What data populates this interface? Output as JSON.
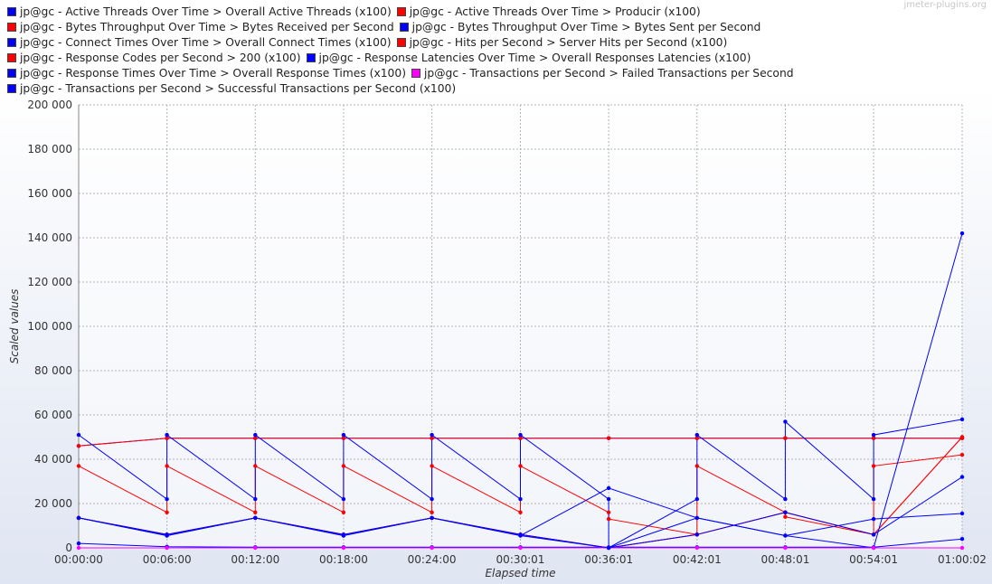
{
  "watermark": "jmeter-plugins.org",
  "chart_data": {
    "type": "line",
    "xlabel": "Elapsed time",
    "ylabel": "Scaled values",
    "ylim": [
      0,
      200000
    ],
    "yticks": [
      "0",
      "20 000",
      "40 000",
      "60 000",
      "80 000",
      "100 000",
      "120 000",
      "140 000",
      "160 000",
      "180 000",
      "200 000"
    ],
    "xlim_seconds": [
      0,
      3602
    ],
    "xticks": [
      "00:00:00",
      "00:06:00",
      "00:12:00",
      "00:18:00",
      "00:24:00",
      "00:30:01",
      "00:36:01",
      "00:42:01",
      "00:48:01",
      "00:54:01",
      "01:00:02"
    ],
    "grid": true,
    "legend_position": "top",
    "series": [
      {
        "name": "jp@gc - Active Threads Over Time > Overall Active Threads (x100)",
        "color": "#0000ff",
        "x": [
          "00:00:00",
          "00:06:00",
          "00:12:00",
          "00:18:00",
          "00:24:00",
          "00:30:01",
          "00:36:01",
          "00:42:01",
          "00:48:01",
          "00:54:01",
          "01:00:02"
        ],
        "y": [
          46000,
          49500,
          49500,
          49500,
          49500,
          49500,
          49500,
          49500,
          49500,
          49500,
          49500
        ]
      },
      {
        "name": "jp@gc - Active Threads Over Time > Producir (x100)",
        "color": "#ff0000",
        "x": [
          "00:00:00",
          "00:06:00",
          "00:12:00",
          "00:18:00",
          "00:24:00",
          "00:30:01",
          "00:36:01",
          "00:42:01",
          "00:48:01",
          "00:54:01",
          "01:00:02"
        ],
        "y": [
          46000,
          49500,
          49500,
          49500,
          49500,
          49500,
          49500,
          49500,
          49500,
          49500,
          49500
        ]
      },
      {
        "name": "jp@gc - Bytes Throughput Over Time > Bytes Received per Second",
        "color": "#ff0000",
        "x": [
          "00:00:00",
          "00:06:00",
          "00:06:00",
          "00:12:00",
          "00:12:00",
          "00:18:00",
          "00:18:00",
          "00:24:00",
          "00:24:00",
          "00:30:01",
          "00:30:01",
          "00:36:01",
          "00:36:01",
          "00:42:01",
          "00:42:01",
          "00:48:01",
          "00:48:01",
          "00:54:01",
          "00:54:01",
          "01:00:02"
        ],
        "y": [
          37000,
          16000,
          37000,
          16000,
          37000,
          16000,
          37000,
          16000,
          37000,
          16000,
          37000,
          16000,
          13000,
          6000,
          37000,
          16000,
          14000,
          6000,
          37000,
          42000
        ]
      },
      {
        "name": "jp@gc - Bytes Throughput Over Time > Bytes Sent per Second",
        "color": "#0000ff",
        "x": [
          "00:00:00",
          "00:06:00",
          "00:06:00",
          "00:12:00",
          "00:12:00",
          "00:18:00",
          "00:18:00",
          "00:24:00",
          "00:24:00",
          "00:30:01",
          "00:30:01",
          "00:36:01",
          "00:36:01",
          "00:42:01",
          "00:42:01",
          "00:48:01",
          "00:48:01",
          "00:54:01",
          "00:54:01",
          "01:00:02"
        ],
        "y": [
          51000,
          22000,
          51000,
          22000,
          51000,
          22000,
          51000,
          22000,
          51000,
          22000,
          51000,
          22000,
          0,
          22000,
          51000,
          22000,
          57000,
          22000,
          51000,
          58000
        ]
      },
      {
        "name": "jp@gc - Connect Times Over Time > Overall Connect Times (x100)",
        "color": "#0000ff",
        "x": [
          "00:00:00",
          "00:06:00",
          "00:12:00",
          "00:18:00",
          "00:24:00",
          "00:30:01",
          "00:36:01",
          "00:42:01",
          "00:48:01",
          "00:54:01",
          "01:00:02"
        ],
        "y": [
          2000,
          500,
          300,
          300,
          300,
          300,
          300,
          300,
          300,
          300,
          4000
        ]
      },
      {
        "name": "jp@gc - Hits per Second > Server Hits per Second (x100)",
        "color": "#ff0000",
        "x": [
          "00:00:00",
          "00:06:00",
          "00:12:00",
          "00:18:00",
          "00:24:00",
          "00:30:01",
          "00:36:01",
          "00:42:01",
          "00:48:01",
          "00:54:01",
          "01:00:02"
        ],
        "y": [
          13500,
          6000,
          13500,
          6000,
          13500,
          6000,
          0,
          6000,
          16000,
          6000,
          50000
        ]
      },
      {
        "name": "jp@gc - Response Codes per Second > 200 (x100)",
        "color": "#ff0000",
        "x": [
          "00:00:00",
          "00:06:00",
          "00:12:00",
          "00:18:00",
          "00:24:00",
          "00:30:01",
          "00:36:01",
          "00:42:01",
          "00:48:01",
          "00:54:01",
          "01:00:02"
        ],
        "y": [
          13500,
          6000,
          13500,
          6000,
          13500,
          6000,
          0,
          6000,
          16000,
          6000,
          50000
        ]
      },
      {
        "name": "jp@gc - Response Latencies Over Time > Overall Responses Latencies (x100)",
        "color": "#0000ff",
        "x": [
          "00:00:00",
          "00:06:00",
          "00:12:00",
          "00:18:00",
          "00:24:00",
          "00:30:01",
          "00:36:01",
          "00:42:01",
          "00:48:01",
          "00:54:01",
          "01:00:02"
        ],
        "y": [
          13500,
          5500,
          13500,
          5500,
          13500,
          5500,
          0,
          13500,
          5500,
          13000,
          15500
        ]
      },
      {
        "name": "jp@gc - Response Times Over Time > Overall Response Times (x100)",
        "color": "#0000ff",
        "x": [
          "00:00:00",
          "00:06:00",
          "00:12:00",
          "00:18:00",
          "00:24:00",
          "00:30:01",
          "00:36:01",
          "00:42:01",
          "00:48:01",
          "00:54:01",
          "01:00:02"
        ],
        "y": [
          13500,
          5500,
          13500,
          5500,
          13500,
          5500,
          27000,
          13500,
          5500,
          0,
          142000
        ]
      },
      {
        "name": "jp@gc - Transactions per Second > Failed Transactions per Second",
        "color": "#ff00ff",
        "x": [
          "00:00:00",
          "00:06:00",
          "00:12:00",
          "00:18:00",
          "00:24:00",
          "00:30:01",
          "00:36:01",
          "00:42:01",
          "00:48:01",
          "00:54:01",
          "01:00:02"
        ],
        "y": [
          0,
          0,
          0,
          0,
          0,
          0,
          0,
          0,
          0,
          0,
          0
        ]
      },
      {
        "name": "jp@gc - Transactions per Second > Successful Transactions per Second (x100)",
        "color": "#0000ff",
        "x": [
          "00:00:00",
          "00:06:00",
          "00:12:00",
          "00:18:00",
          "00:24:00",
          "00:30:01",
          "00:36:01",
          "00:42:01",
          "00:48:01",
          "00:54:01",
          "01:00:02"
        ],
        "y": [
          13500,
          6000,
          13500,
          6000,
          13500,
          6000,
          0,
          6000,
          16000,
          6000,
          32000
        ]
      }
    ]
  }
}
